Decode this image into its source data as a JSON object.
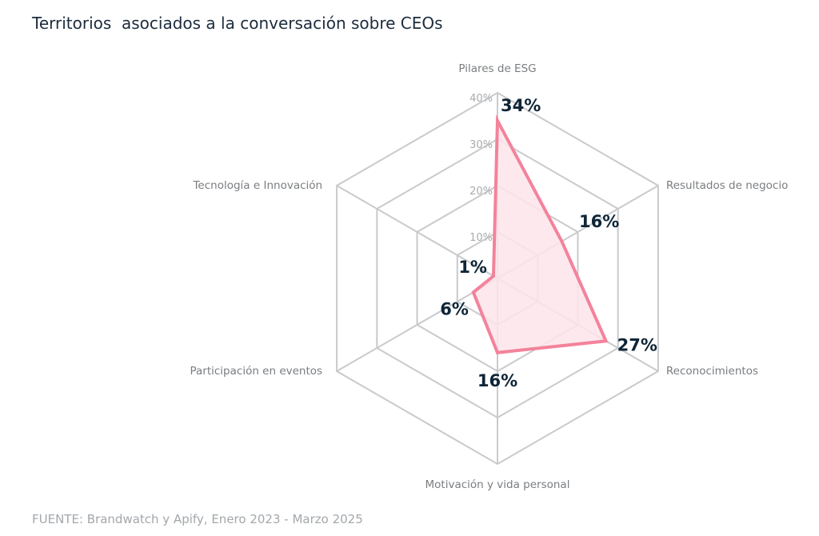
{
  "title": "Territorios  asociados a la conversación sobre CEOs",
  "source": "FUENTE: Brandwatch y Apify, Enero 2023 - Marzo 2025",
  "chart_data": {
    "type": "radar",
    "categories": [
      "Pilares de ESG",
      "Resultados de negocio",
      "Reconocimientos",
      "Motivación y vida personal",
      "Participación en eventos",
      "Tecnología e Innovación"
    ],
    "values": [
      34,
      16,
      27,
      16,
      6,
      1
    ],
    "data_labels": [
      "34%",
      "16%",
      "27%",
      "16%",
      "6%",
      "1%"
    ],
    "rlim": [
      0,
      40
    ],
    "ticks": [
      10,
      20,
      30,
      40
    ],
    "tick_labels": [
      "10%",
      "20%",
      "30%",
      "40%"
    ],
    "grid": true,
    "colors": {
      "line": "#f4829b",
      "fill": "#fde5ea",
      "grid": "#c9cacc",
      "label": "#7a7d80",
      "value": "#0e2537"
    }
  }
}
